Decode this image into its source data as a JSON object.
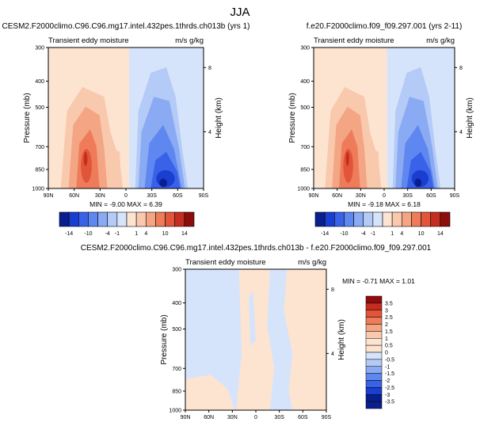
{
  "page_title": "JJA",
  "colors": {
    "neg_scale": [
      "#0a1f8f",
      "#1a3fd0",
      "#3a62e8",
      "#5f87f0",
      "#8aaaf3",
      "#b4caf7",
      "#d6e4fb"
    ],
    "pos_scale": [
      "#fde4d0",
      "#f9c9ad",
      "#f4a584",
      "#ee7c5a",
      "#e2553a",
      "#c42e20",
      "#8f0c0c"
    ]
  },
  "chart_data": [
    {
      "type": "contour",
      "title": "CESM2.F2000climo.C96.C96.mg17.intel.432pes.1thrds.ch013b (yrs 1)",
      "subtitle_left": "Transient eddy moisture",
      "subtitle_right": "m/s g/kg",
      "ylabel": "Pressure (mb)",
      "ylabel_right": "Height (km)",
      "x_ticks": [
        "90N",
        "60N",
        "30N",
        "0",
        "30S",
        "60S",
        "90S"
      ],
      "y_ticks": [
        "300",
        "400",
        "500",
        "700",
        "850",
        "1000"
      ],
      "y_right_ticks": [
        "8",
        "4"
      ],
      "stats_text": "MIN = -9.00   MAX =  6.39",
      "colorbar_labels": [
        "-14",
        "-10",
        "-4",
        "-1",
        "1",
        "4",
        "10",
        "14"
      ]
    },
    {
      "type": "contour",
      "title": "f.e20.F2000climo.f09_f09.297.001 (yrs 2-11)",
      "subtitle_left": "Transient eddy moisture",
      "subtitle_right": "m/s g/kg",
      "ylabel": "Pressure (mb)",
      "ylabel_right": "Height (km)",
      "x_ticks": [
        "90N",
        "60N",
        "30N",
        "0",
        "30S",
        "60S",
        "90S"
      ],
      "y_ticks": [
        "300",
        "400",
        "500",
        "700",
        "850",
        "1000"
      ],
      "y_right_ticks": [
        "8",
        "4"
      ],
      "stats_text": "MIN = -9.18   MAX =  6.18",
      "colorbar_labels": [
        "-14",
        "-10",
        "-4",
        "-1",
        "1",
        "4",
        "10",
        "14"
      ]
    },
    {
      "type": "contour",
      "title": "CESM2.F2000climo.C96.C96.mg17.intel.432pes.1thrds.ch013b - f.e20.F2000climo.f09_f09.297.001",
      "subtitle_left": "Transient eddy moisture",
      "subtitle_right": "m/s g/kg",
      "ylabel": "Pressure (mb)",
      "ylabel_right": "Height (km)",
      "x_ticks": [
        "90N",
        "60N",
        "30N",
        "0",
        "30S",
        "60S",
        "90S"
      ],
      "y_ticks": [
        "300",
        "400",
        "500",
        "700",
        "850",
        "1000"
      ],
      "y_right_ticks": [
        "8",
        "4"
      ],
      "stats_text": "MIN = -0.71   MAX =  1.01",
      "colorbar_labels": [
        "3.5",
        "3",
        "2.5",
        "2",
        "1.5",
        "1",
        "0.5",
        "0",
        "-0.5",
        "-1",
        "-1.5",
        "-2",
        "-2.5",
        "-3",
        "-3.5"
      ]
    }
  ]
}
